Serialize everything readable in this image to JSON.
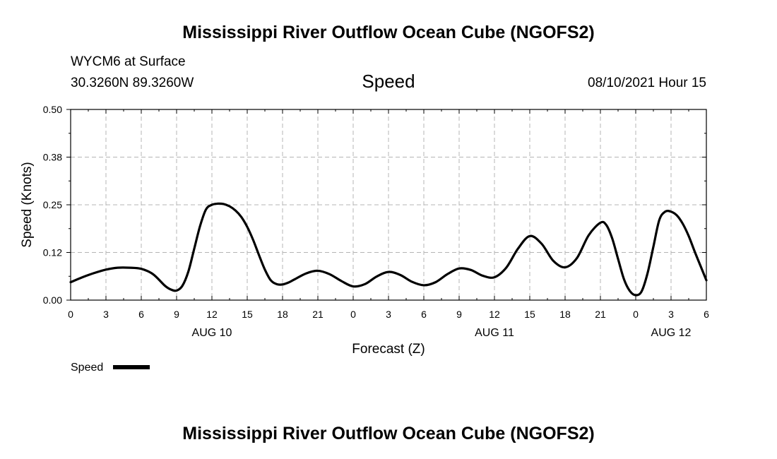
{
  "header": {
    "title_top": "Mississippi River Outflow Ocean Cube (NGOFS2)",
    "station": "WYCM6 at Surface",
    "coords": "30.3260N  89.3260W",
    "variable": "Speed",
    "datetime": "08/10/2021 Hour 15",
    "title_bottom": "Mississippi River Outflow Ocean Cube (NGOFS2)"
  },
  "legend": {
    "label": "Speed"
  },
  "chart_data": {
    "type": "line",
    "title": "Speed",
    "xlabel": "Forecast (Z)",
    "ylabel": "Speed (Knots)",
    "xlim": [
      0,
      54
    ],
    "ylim": [
      0,
      0.5
    ],
    "grid": true,
    "legend_position": "bottom-left",
    "y_ticks": [
      {
        "value": 0,
        "label": "0.00"
      },
      {
        "value": 0.125,
        "label": "0.12"
      },
      {
        "value": 0.25,
        "label": "0.25"
      },
      {
        "value": 0.375,
        "label": "0.38"
      },
      {
        "value": 0.5,
        "label": "0.50"
      }
    ],
    "x_ticks": [
      {
        "value": 0,
        "label": "0"
      },
      {
        "value": 3,
        "label": "3"
      },
      {
        "value": 6,
        "label": "6"
      },
      {
        "value": 9,
        "label": "9"
      },
      {
        "value": 12,
        "label": "12"
      },
      {
        "value": 15,
        "label": "15"
      },
      {
        "value": 18,
        "label": "18"
      },
      {
        "value": 21,
        "label": "21"
      },
      {
        "value": 24,
        "label": "0"
      },
      {
        "value": 27,
        "label": "3"
      },
      {
        "value": 30,
        "label": "6"
      },
      {
        "value": 33,
        "label": "9"
      },
      {
        "value": 36,
        "label": "12"
      },
      {
        "value": 39,
        "label": "15"
      },
      {
        "value": 42,
        "label": "18"
      },
      {
        "value": 45,
        "label": "21"
      },
      {
        "value": 48,
        "label": "0"
      },
      {
        "value": 51,
        "label": "3"
      },
      {
        "value": 54,
        "label": "6"
      }
    ],
    "date_labels": [
      {
        "value": 12,
        "label": "AUG 10"
      },
      {
        "value": 36,
        "label": "AUG 11"
      },
      {
        "value": 51,
        "label": "AUG 12"
      }
    ],
    "series": [
      {
        "name": "Speed",
        "color": "#000000",
        "x": [
          0,
          1,
          2,
          3,
          4,
          5,
          6,
          7,
          8,
          8.5,
          9,
          9.5,
          10,
          10.5,
          11,
          11.5,
          12,
          12.5,
          13,
          13.5,
          14,
          14.5,
          15,
          15.5,
          16,
          16.5,
          17,
          17.5,
          18,
          18.5,
          19,
          20,
          21,
          22,
          23,
          24,
          25,
          26,
          27,
          28,
          29,
          30,
          31,
          32,
          33,
          34,
          35,
          36,
          37,
          38,
          39,
          40,
          41,
          42,
          43,
          44,
          45,
          45.5,
          46,
          46.5,
          47,
          47.5,
          48,
          48.5,
          49,
          49.5,
          50,
          50.5,
          51,
          51.5,
          52,
          52.5,
          53,
          53.5,
          54
        ],
        "values": [
          0.047,
          0.06,
          0.071,
          0.08,
          0.085,
          0.085,
          0.082,
          0.068,
          0.038,
          0.028,
          0.025,
          0.038,
          0.075,
          0.135,
          0.195,
          0.238,
          0.25,
          0.253,
          0.252,
          0.246,
          0.235,
          0.218,
          0.192,
          0.158,
          0.118,
          0.08,
          0.052,
          0.042,
          0.041,
          0.046,
          0.054,
          0.07,
          0.077,
          0.068,
          0.05,
          0.036,
          0.042,
          0.062,
          0.074,
          0.066,
          0.048,
          0.039,
          0.047,
          0.068,
          0.083,
          0.079,
          0.064,
          0.06,
          0.085,
          0.135,
          0.168,
          0.148,
          0.103,
          0.086,
          0.11,
          0.17,
          0.203,
          0.197,
          0.162,
          0.108,
          0.055,
          0.024,
          0.013,
          0.023,
          0.07,
          0.14,
          0.21,
          0.232,
          0.232,
          0.222,
          0.2,
          0.168,
          0.128,
          0.09,
          0.052
        ]
      }
    ]
  }
}
